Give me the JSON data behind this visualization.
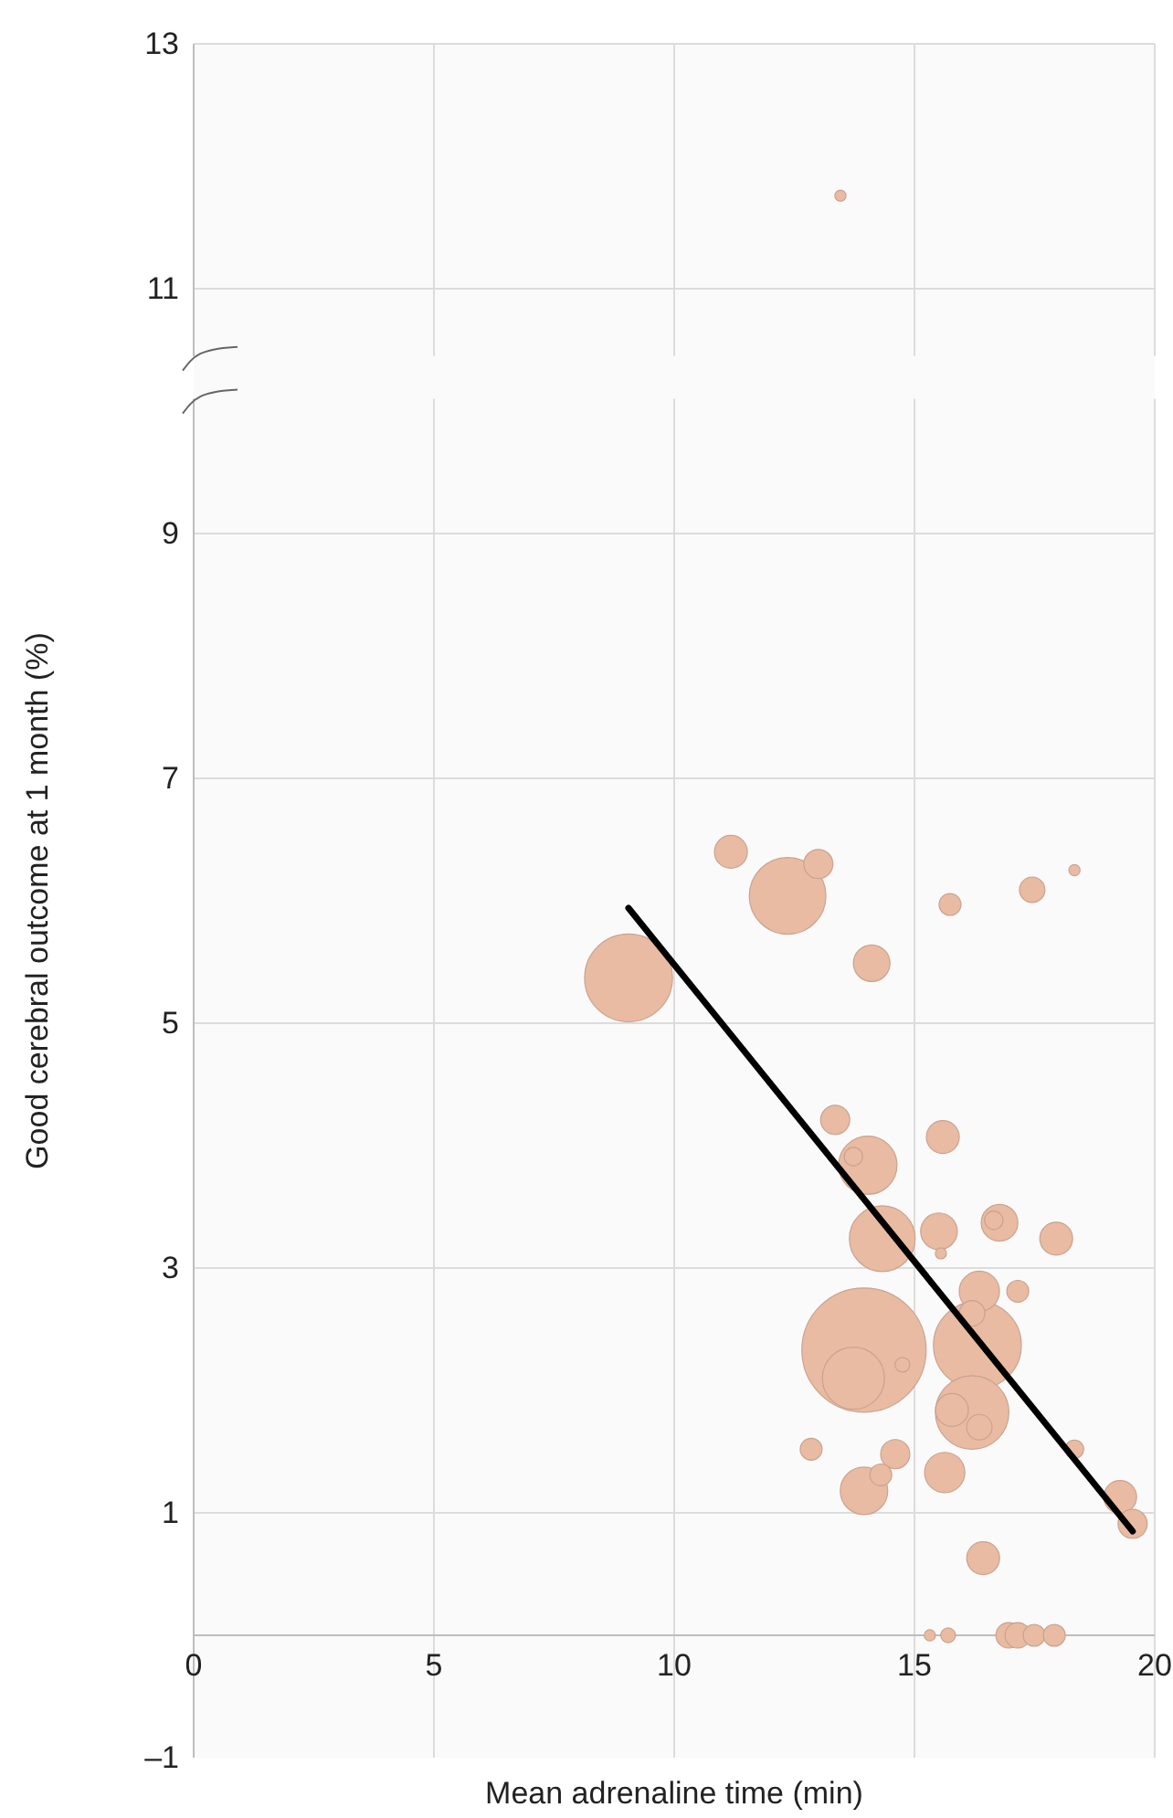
{
  "chart_data": {
    "type": "bubble",
    "xlabel": "Mean adrenaline time (min)",
    "ylabel": "Good cerebral outcome at 1 month (%)",
    "xlim": [
      0,
      20
    ],
    "xticks": [
      0,
      5,
      10,
      15,
      20
    ],
    "ylim": [
      -1,
      13
    ],
    "yticks": [
      13,
      11,
      9,
      7,
      5,
      3,
      1,
      {
        "value": -1,
        "label": "–1"
      }
    ],
    "grid": true,
    "series": [
      {
        "color": "#e9bba3",
        "x": [
          13.46,
          11.18,
          13.0,
          12.36,
          15.74,
          17.45,
          18.33,
          14.11,
          9.05,
          13.35,
          15.59,
          14.03,
          13.73,
          14.33,
          15.51,
          15.55,
          16.77,
          16.65,
          17.95,
          16.35,
          17.15,
          16.2,
          13.95,
          13.73,
          14.75,
          16.31,
          16.2,
          15.78,
          16.35,
          12.85,
          14.6,
          13.95,
          14.3,
          15.63,
          18.33,
          19.28,
          19.54,
          16.43,
          15.32,
          15.7,
          16.96,
          17.15,
          17.49,
          17.91
        ],
        "values": [
          11.76,
          6.4,
          6.3,
          6.04,
          5.97,
          6.09,
          6.25,
          5.49,
          5.37,
          4.21,
          4.07,
          3.84,
          3.91,
          3.24,
          3.3,
          3.12,
          3.37,
          3.39,
          3.24,
          2.81,
          2.81,
          2.63,
          2.33,
          2.1,
          2.21,
          2.37,
          1.82,
          1.84,
          1.7,
          1.52,
          1.48,
          1.18,
          1.31,
          1.33,
          1.52,
          1.13,
          0.91,
          0.63,
          0,
          0,
          0,
          0,
          0,
          0
        ],
        "sizes": [
          0.008,
          0.07,
          0.055,
          0.38,
          0.031,
          0.042,
          0.008,
          0.087,
          0.5,
          0.055,
          0.07,
          0.22,
          0.022,
          0.28,
          0.087,
          0.008,
          0.087,
          0.022,
          0.07,
          0.105,
          0.031,
          0.042,
          1,
          0.25,
          0.014,
          0.5,
          0.35,
          0.07,
          0.042,
          0.031,
          0.055,
          0.146,
          0.031,
          0.105,
          0.022,
          0.07,
          0.055,
          0.07,
          0.008,
          0.014,
          0.042,
          0.042,
          0.031,
          0.031
        ]
      },
      {
        "type": "line",
        "color": "#000000",
        "x": [
          9.05,
          19.54
        ],
        "values": [
          5.94,
          0.85
        ]
      }
    ]
  }
}
